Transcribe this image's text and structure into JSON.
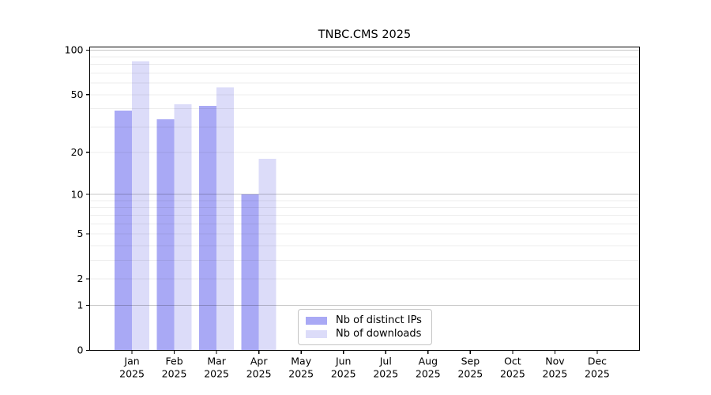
{
  "title": "TNBC.CMS 2025",
  "chart_data": {
    "type": "bar",
    "title": "TNBC.CMS 2025",
    "categories": [
      "Jan",
      "Feb",
      "Mar",
      "Apr",
      "May",
      "Jun",
      "Jul",
      "Aug",
      "Sep",
      "Oct",
      "Nov",
      "Dec"
    ],
    "category_year": "2025",
    "series": [
      {
        "name": "Nb of distinct IPs",
        "color": "#a9a9f5",
        "values": [
          39,
          34,
          42,
          10,
          0,
          0,
          0,
          0,
          0,
          0,
          0,
          0
        ]
      },
      {
        "name": "Nb of downloads",
        "color": "#dcdcf9",
        "values": [
          84,
          43,
          56,
          18,
          0,
          0,
          0,
          0,
          0,
          0,
          0,
          0
        ]
      }
    ],
    "xlabel": "",
    "ylabel": "",
    "yscale": "log1p",
    "ylim": [
      0,
      107
    ],
    "yticks": [
      0,
      1,
      2,
      5,
      10,
      20,
      50,
      100
    ],
    "grid": {
      "major_lines": [
        1,
        10,
        100
      ],
      "minor_lines": [
        2,
        3,
        4,
        5,
        6,
        7,
        8,
        9,
        20,
        30,
        40,
        50,
        60,
        70,
        80,
        90
      ],
      "major_color": "rgba(0,0,0,0.22)",
      "minor_color": "rgba(0,0,0,0.072)"
    },
    "axis_color": "#000000",
    "legend_position": "inside-bottom-center"
  }
}
